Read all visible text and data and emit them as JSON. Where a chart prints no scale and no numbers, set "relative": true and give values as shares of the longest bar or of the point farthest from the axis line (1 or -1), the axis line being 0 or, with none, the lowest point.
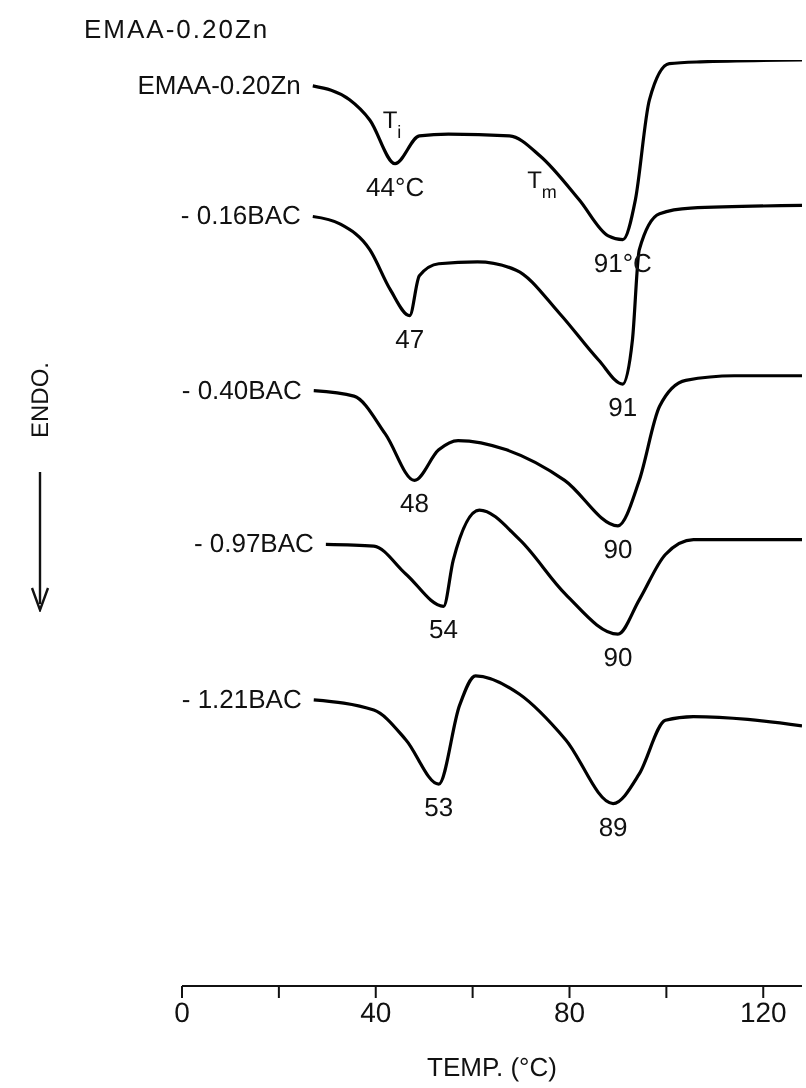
{
  "chart_data": {
    "type": "line",
    "relative": true,
    "title": "EMAA-0.20Zn",
    "xlabel": "TEMP. (°C)",
    "xlim": [
      0,
      128
    ],
    "xticks": [
      0,
      {
        "value": 20,
        "label": null
      },
      40,
      {
        "value": 60,
        "label": null
      },
      80,
      {
        "value": 100,
        "label": null
      },
      120
    ],
    "marker": "none",
    "line_style": "solid",
    "series": [
      {
        "name": "EMAA-0.20Zn",
        "color": "#000000",
        "x": [
          27,
          34.6,
          38.8,
          44,
          49,
          55,
          67.6,
          74,
          82,
          88,
          91,
          93.6,
          96.5,
          100.6,
          107,
          128
        ],
        "values": [
          0.972,
          0.957,
          0.935,
          0.888,
          0.918,
          0.92,
          0.918,
          0.896,
          0.849,
          0.81,
          0.806,
          0.849,
          0.957,
          0.996,
          0.998,
          1.0
        ]
      },
      {
        "name": "- 0.16BAC",
        "color": "#000000",
        "x": [
          27,
          32.6,
          38.8,
          43,
          47,
          49,
          53,
          61,
          69,
          78,
          86,
          91,
          93,
          94.4,
          98.6,
          105,
          128
        ],
        "values": [
          0.831,
          0.823,
          0.795,
          0.752,
          0.724,
          0.767,
          0.78,
          0.782,
          0.773,
          0.726,
          0.676,
          0.65,
          0.698,
          0.795,
          0.834,
          0.84,
          0.843
        ]
      },
      {
        "name": "- 0.40BAC",
        "color": "#000000",
        "x": [
          27.2,
          35.5,
          42,
          48,
          53,
          57,
          67,
          79,
          90,
          94.4,
          98.6,
          104,
          114,
          128
        ],
        "values": [
          0.643,
          0.637,
          0.596,
          0.546,
          0.579,
          0.589,
          0.579,
          0.546,
          0.497,
          0.546,
          0.626,
          0.654,
          0.659,
          0.659
        ]
      },
      {
        "name": "- 0.97BAC",
        "color": "#000000",
        "x": [
          29.7,
          39.6,
          46.2,
          54,
          56,
          61.4,
          69.7,
          79.2,
          90,
          94.4,
          99.8,
          105.6,
          128
        ],
        "values": [
          0.477,
          0.475,
          0.445,
          0.41,
          0.46,
          0.514,
          0.482,
          0.423,
          0.38,
          0.417,
          0.466,
          0.482,
          0.482
        ]
      },
      {
        "name": "- 1.21BAC",
        "color": "#000000",
        "x": [
          27.2,
          39.6,
          46.2,
          53,
          57.3,
          60.6,
          69.7,
          79.2,
          89,
          94.4,
          99.8,
          105.6,
          128
        ],
        "values": [
          0.309,
          0.298,
          0.266,
          0.218,
          0.303,
          0.335,
          0.315,
          0.266,
          0.197,
          0.229,
          0.287,
          0.291,
          0.281
        ]
      }
    ],
    "annotations": [
      "T$_{i}$",
      "T$_{m}$",
      "ENDO.",
      {
        "text": "44°C",
        "x": 44,
        "y": 0.888
      },
      {
        "text": "91°C",
        "x": 91,
        "y": 0.806
      },
      {
        "text": "47",
        "x": 47,
        "y": 0.724
      },
      {
        "text": "91",
        "x": 91,
        "y": 0.65
      },
      {
        "text": "48",
        "x": 48,
        "y": 0.546
      },
      {
        "text": "90",
        "x": 90,
        "y": 0.497
      },
      {
        "text": "54",
        "x": 54,
        "y": 0.41
      },
      {
        "text": "90",
        "x": 90,
        "y": 0.38
      },
      {
        "text": "53",
        "x": 53,
        "y": 0.218
      },
      {
        "text": "89",
        "x": 89,
        "y": 0.197
      }
    ]
  }
}
